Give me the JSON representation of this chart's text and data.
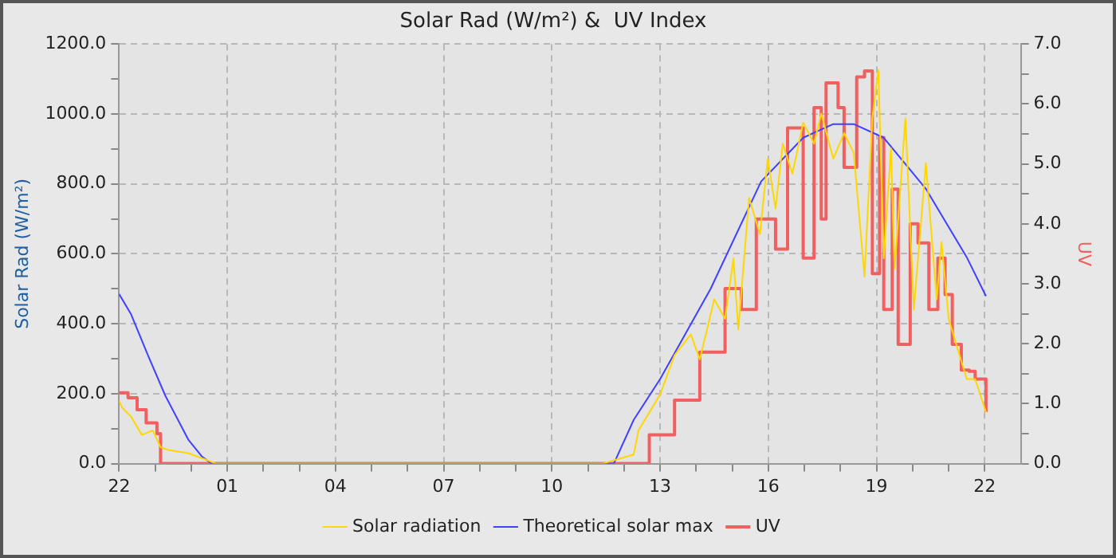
{
  "chart_data": {
    "type": "line",
    "title": "Solar Rad (W/m²) &  UV Index",
    "ylabel": "Solar Rad (W/m²)",
    "y2label": "UV",
    "xlim": [
      "--01-01T22:00",
      "--01-02T23:00"
    ],
    "xticks": [
      {
        "value": "--01-01T22:00",
        "label": "22"
      },
      {
        "value": "--01-01T23:00",
        "label": null
      },
      {
        "value": "--01-02T00:00",
        "label": null
      },
      {
        "value": "--01-02T01:00",
        "label": "01"
      },
      {
        "value": "--01-02T02:00",
        "label": null
      },
      {
        "value": "--01-02T03:00",
        "label": null
      },
      {
        "value": "--01-02T04:00",
        "label": "04"
      },
      {
        "value": "--01-02T05:00",
        "label": null
      },
      {
        "value": "--01-02T06:00",
        "label": null
      },
      {
        "value": "--01-02T07:00",
        "label": "07"
      },
      {
        "value": "--01-02T08:00",
        "label": null
      },
      {
        "value": "--01-02T09:00",
        "label": null
      },
      {
        "value": "--01-02T10:00",
        "label": "10"
      },
      {
        "value": "--01-02T11:00",
        "label": null
      },
      {
        "value": "--01-02T12:00",
        "label": null
      },
      {
        "value": "--01-02T13:00",
        "label": "13"
      },
      {
        "value": "--01-02T14:00",
        "label": null
      },
      {
        "value": "--01-02T15:00",
        "label": null
      },
      {
        "value": "--01-02T16:00",
        "label": "16"
      },
      {
        "value": "--01-02T17:00",
        "label": null
      },
      {
        "value": "--01-02T18:00",
        "label": null
      },
      {
        "value": "--01-02T19:00",
        "label": "19"
      },
      {
        "value": "--01-02T20:00",
        "label": null
      },
      {
        "value": "--01-02T21:00",
        "label": null
      },
      {
        "value": "--01-02T22:00",
        "label": "22"
      }
    ],
    "ylim": [
      0,
      1200
    ],
    "yticks": [
      {
        "value": 0,
        "label": "0.0"
      },
      {
        "value": 100,
        "label": null
      },
      {
        "value": 200,
        "label": "200.0"
      },
      {
        "value": 300,
        "label": null
      },
      {
        "value": 400,
        "label": "400.0"
      },
      {
        "value": 500,
        "label": null
      },
      {
        "value": 600,
        "label": "600.0"
      },
      {
        "value": 700,
        "label": null
      },
      {
        "value": 800,
        "label": "800.0"
      },
      {
        "value": 900,
        "label": null
      },
      {
        "value": 1000,
        "label": "1000.0"
      },
      {
        "value": 1100,
        "label": null
      },
      {
        "value": 1200,
        "label": "1200.0"
      }
    ],
    "y2lim": [
      0,
      7
    ],
    "y2ticks": [
      {
        "value": 0,
        "label": "0.0"
      },
      {
        "value": 0.5,
        "label": null
      },
      {
        "value": 1,
        "label": "1.0"
      },
      {
        "value": 1.5,
        "label": null
      },
      {
        "value": 2,
        "label": "2.0"
      },
      {
        "value": 2.5,
        "label": null
      },
      {
        "value": 3,
        "label": "3.0"
      },
      {
        "value": 3.5,
        "label": null
      },
      {
        "value": 4,
        "label": "4.0"
      },
      {
        "value": 4.5,
        "label": null
      },
      {
        "value": 5,
        "label": "5.0"
      },
      {
        "value": 5.5,
        "label": null
      },
      {
        "value": 6,
        "label": "6.0"
      },
      {
        "value": 6.5,
        "label": null
      },
      {
        "value": 7,
        "label": "7.0"
      }
    ],
    "grid": true,
    "legend": "bottom",
    "marker": "none",
    "line_style": "solid",
    "series": [
      {
        "name": "Solar radiation",
        "color": "#ffd700",
        "x": [
          "--01-01T22:00",
          "--01-01T22:05",
          "--01-01T22:20",
          "--01-01T22:38",
          "--01-01T22:56",
          "--01-01T23:09",
          "--01-01T23:22",
          "--01-01T23:55",
          "--01-02T00:28",
          "--01-02T00:41",
          "--01-02T11:24",
          "--01-02T12:16",
          "--01-02T12:24",
          "--01-02T13:00",
          "--01-02T13:24",
          "--01-02T13:51",
          "--01-02T14:06",
          "--01-02T14:30",
          "--01-02T14:48",
          "--01-02T15:02",
          "--01-02T15:10",
          "--01-02T15:28",
          "--01-02T15:46",
          "--01-02T15:59",
          "--01-02T16:12",
          "--01-02T16:24",
          "--01-02T16:40",
          "--01-02T16:58",
          "--01-02T17:16",
          "--01-02T17:28",
          "--01-02T17:48",
          "--01-02T18:06",
          "--01-02T18:22",
          "--01-02T18:40",
          "--01-02T18:53",
          "--01-02T19:03",
          "--01-02T19:12",
          "--01-02T19:24",
          "--01-02T19:30",
          "--01-02T19:48",
          "--01-02T20:02",
          "--01-02T20:22",
          "--01-02T20:40",
          "--01-02T20:48",
          "--01-02T21:00",
          "--01-02T21:18",
          "--01-02T21:30",
          "--01-02T21:44",
          "--01-02T22:02"
        ],
        "values": [
          180,
          160,
          134,
          82,
          95,
          47,
          39,
          30,
          9,
          0,
          0,
          26,
          95,
          198,
          310,
          370,
          298,
          470,
          414,
          587,
          384,
          760,
          656,
          872,
          729,
          915,
          829,
          975,
          915,
          1001,
          872,
          945,
          889,
          535,
          988,
          1126,
          587,
          902,
          557,
          988,
          440,
          859,
          470,
          634,
          414,
          310,
          242,
          242,
          147
        ]
      },
      {
        "name": "Theoretical solar max",
        "color": "#4040ff",
        "x": [
          "--01-01T22:00",
          "--01-01T22:20",
          "--01-01T22:48",
          "--01-01T23:17",
          "--01-01T23:55",
          "--01-02T00:18",
          "--01-02T00:34",
          "--01-02T11:43",
          "--01-02T12:16",
          "--01-02T13:00",
          "--01-02T14:24",
          "--01-02T15:48",
          "--01-02T16:58",
          "--01-02T17:48",
          "--01-02T18:22",
          "--01-02T19:12",
          "--01-02T20:22",
          "--01-02T21:31",
          "--01-02T22:02"
        ],
        "values": [
          485,
          427,
          310,
          194,
          69,
          20,
          0,
          0,
          125,
          242,
          500,
          807,
          932,
          971,
          971,
          932,
          786,
          587,
          479
        ]
      },
      {
        "name": "UV",
        "type": "step",
        "axis": "y2",
        "color": "#f06060",
        "x": [
          "--01-01T22:00",
          "--01-01T22:15",
          "--01-01T22:30",
          "--01-01T22:45",
          "--01-01T23:03",
          "--01-01T23:09",
          "--01-02T12:42",
          "--01-02T13:24",
          "--01-02T14:06",
          "--01-02T14:48",
          "--01-02T15:15",
          "--01-02T15:40",
          "--01-02T16:12",
          "--01-02T16:32",
          "--01-02T16:58",
          "--01-02T17:16",
          "--01-02T17:28",
          "--01-02T17:36",
          "--01-02T17:56",
          "--01-02T18:06",
          "--01-02T18:27",
          "--01-02T18:40",
          "--01-02T18:53",
          "--01-02T19:05",
          "--01-02T19:12",
          "--01-02T19:26",
          "--01-02T19:36",
          "--01-02T19:56",
          "--01-02T20:09",
          "--01-02T20:27",
          "--01-02T20:42",
          "--01-02T20:54",
          "--01-02T21:06",
          "--01-02T21:21",
          "--01-02T21:34",
          "--01-02T21:44",
          "--01-02T22:02"
        ],
        "values": [
          1.18,
          1.1,
          0.9,
          0.68,
          0.5,
          0,
          0.48,
          1.06,
          1.86,
          2.92,
          2.57,
          4.08,
          3.58,
          5.6,
          3.43,
          5.94,
          4.08,
          6.35,
          5.94,
          4.94,
          6.45,
          6.55,
          3.17,
          5.44,
          2.57,
          4.58,
          1.99,
          4.0,
          3.68,
          2.57,
          3.43,
          2.82,
          1.99,
          1.56,
          1.54,
          1.41,
          0.86
        ]
      }
    ]
  }
}
